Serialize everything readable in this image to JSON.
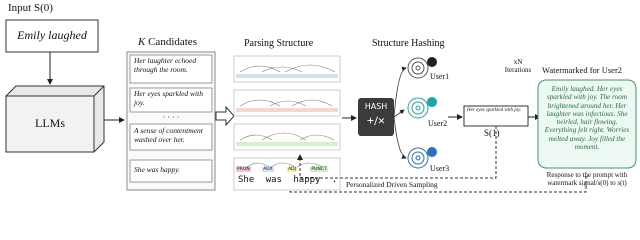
{
  "input": {
    "label": "Input S(0)",
    "text": "Emily laughed"
  },
  "model": "LLMs",
  "candidates": {
    "title_var": "K",
    "title": "Candidates",
    "items": [
      "Her laughter echoed through the room.",
      "Her eyes sparkled with joy.",
      "A sense of contentment washed over her.",
      "She was happy."
    ],
    "ellipsis": "· · · ·"
  },
  "parsing": {
    "title": "Parsing Structure",
    "words": [
      "She",
      "was",
      "happy",
      "."
    ],
    "tags": [
      "PRON",
      "AUX",
      "ADJ",
      "PUNCT"
    ]
  },
  "hashing": {
    "title": "Structure Hashing",
    "box": "HASH",
    "symbol": "+/×",
    "users": [
      "User1",
      "User2",
      "User3"
    ]
  },
  "output": {
    "text": "Her eyes sparkled with joy.",
    "label": "S(1)",
    "iterations": [
      "xN",
      "Iterations"
    ]
  },
  "sampling": "Personalized Driven Sampling",
  "watermark": {
    "title": "Watermarked for User2",
    "text": "Emily laughed. Her eyes sparkled with joy. The room brightened around her. Her laughter was infectious. She twirled, hair flowing. Everything felt right. Worries melted away. Joy filled the moment.",
    "caption": "Response to the prompt with watermark signal/s(0) to s(t)"
  }
}
